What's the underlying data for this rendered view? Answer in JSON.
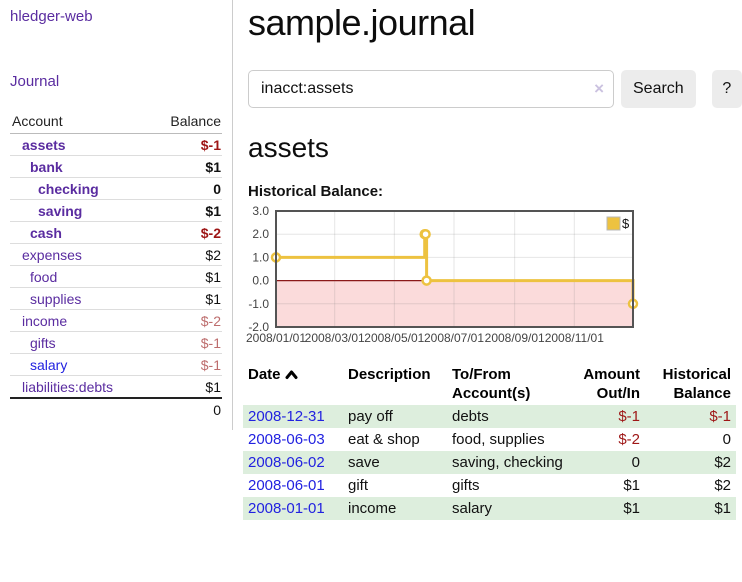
{
  "colors": {
    "link_purple": "#5a2ca0",
    "link_blue": "#2222e0",
    "negative_strong": "#9e1616",
    "negative_soft": "#bd6d6d",
    "row_stripe_green": "#ddeedd",
    "chart_line_gold": "#EDC240",
    "chart_negative_region": "#fbdbdb",
    "chart_zero_line": "#8b1a1a",
    "chart_border": "#545454"
  },
  "sidebar": {
    "brand": "hledger-web",
    "nav_journal": "Journal",
    "table": {
      "account_header": "Account",
      "balance_header": "Balance",
      "accounts": [
        {
          "name": "assets",
          "depth": 1,
          "bold": true,
          "link_color": "purple",
          "balance": "$-1",
          "balance_class": "red-bold"
        },
        {
          "name": "bank",
          "depth": 2,
          "bold": true,
          "link_color": "purple",
          "balance": "$1",
          "balance_class": "black-bold"
        },
        {
          "name": "checking",
          "depth": 3,
          "bold": true,
          "link_color": "purple",
          "balance": "0",
          "balance_class": "black-bold"
        },
        {
          "name": "saving",
          "depth": 3,
          "bold": true,
          "link_color": "purple",
          "balance": "$1",
          "balance_class": "black-bold"
        },
        {
          "name": "cash",
          "depth": 2,
          "bold": true,
          "link_color": "purple",
          "balance": "$-2",
          "balance_class": "red-bold"
        },
        {
          "name": "expenses",
          "depth": 1,
          "bold": false,
          "link_color": "purple",
          "balance": "$2",
          "balance_class": "black"
        },
        {
          "name": "food",
          "depth": 2,
          "bold": false,
          "link_color": "purple",
          "balance": "$1",
          "balance_class": "black"
        },
        {
          "name": "supplies",
          "depth": 2,
          "bold": false,
          "link_color": "purple",
          "balance": "$1",
          "balance_class": "black"
        },
        {
          "name": "income",
          "depth": 1,
          "bold": false,
          "link_color": "purple",
          "balance": "$-2",
          "balance_class": "rose"
        },
        {
          "name": "gifts",
          "depth": 2,
          "bold": false,
          "link_color": "purple",
          "balance": "$-1",
          "balance_class": "rose"
        },
        {
          "name": "salary",
          "depth": 2,
          "bold": false,
          "link_color": "blue",
          "balance": "$-1",
          "balance_class": "rose"
        },
        {
          "name": "liabilities:debts",
          "depth": 1,
          "bold": false,
          "link_color": "purple",
          "balance": "$1",
          "balance_class": "black"
        }
      ],
      "total": "0"
    }
  },
  "main": {
    "title": "sample.journal",
    "search": {
      "value": "inacct:assets",
      "clear_icon": "×",
      "button_label": "Search",
      "help_label": "?"
    },
    "account_heading": "assets",
    "chart_label": "Historical Balance:"
  },
  "chart_data": {
    "type": "line",
    "step": true,
    "title": "Historical Balance",
    "legend": {
      "position": "top-right"
    },
    "series": [
      {
        "name": "$",
        "points": [
          {
            "x": "2008-01-01",
            "y": 1
          },
          {
            "x": "2008-06-01",
            "y": 2
          },
          {
            "x": "2008-06-02",
            "y": 2
          },
          {
            "x": "2008-06-03",
            "y": 0
          },
          {
            "x": "2008-12-31",
            "y": -1
          }
        ]
      }
    ],
    "xrange": [
      "2008-01-01",
      "2008-12-31"
    ],
    "ylim": [
      -2,
      3
    ],
    "yticks": [
      {
        "v": 3,
        "label": "3.0"
      },
      {
        "v": 2,
        "label": "2.0"
      },
      {
        "v": 1,
        "label": "1.0"
      },
      {
        "v": 0,
        "label": "0.0"
      },
      {
        "v": -1,
        "label": "-1.0"
      },
      {
        "v": -2,
        "label": "-2.0"
      }
    ],
    "xticks": [
      {
        "d": "2008-01-01",
        "label": "2008/01/01"
      },
      {
        "d": "2008-03-01",
        "label": "2008/03/01"
      },
      {
        "d": "2008-05-01",
        "label": "2008/05/01"
      },
      {
        "d": "2008-07-01",
        "label": "2008/07/01"
      },
      {
        "d": "2008-09-01",
        "label": "2008/09/01"
      },
      {
        "d": "2008-11-01",
        "label": "2008/11/01"
      }
    ],
    "grid": true,
    "negative_region_shaded": true
  },
  "transactions": {
    "headers": {
      "date": "Date",
      "description": "Description",
      "accounts": "To/From Account(s)",
      "amount": "Amount Out/In",
      "balance": "Historical Balance"
    },
    "rows": [
      {
        "date": "2008-12-31",
        "description": "pay off",
        "accounts": "debts",
        "amount": "$-1",
        "amount_negative": true,
        "balance": "$-1",
        "balance_negative": true
      },
      {
        "date": "2008-06-03",
        "description": "eat & shop",
        "accounts": "food, supplies",
        "amount": "$-2",
        "amount_negative": true,
        "balance": "0",
        "balance_negative": false
      },
      {
        "date": "2008-06-02",
        "description": "save",
        "accounts": "saving, checking",
        "amount": "0",
        "amount_negative": false,
        "balance": "$2",
        "balance_negative": false
      },
      {
        "date": "2008-06-01",
        "description": "gift",
        "accounts": "gifts",
        "amount": "$1",
        "amount_negative": false,
        "balance": "$2",
        "balance_negative": false
      },
      {
        "date": "2008-01-01",
        "description": "income",
        "accounts": "salary",
        "amount": "$1",
        "amount_negative": false,
        "balance": "$1",
        "balance_negative": false
      }
    ]
  }
}
